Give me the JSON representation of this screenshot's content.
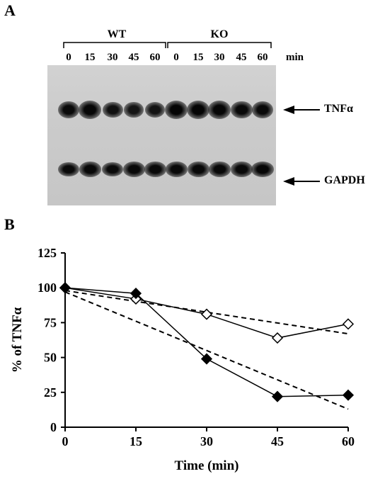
{
  "panel_a": {
    "letter": "A",
    "groups": [
      {
        "label": "WT",
        "lanes": [
          "0",
          "15",
          "30",
          "45",
          "60"
        ]
      },
      {
        "label": "KO",
        "lanes": [
          "0",
          "15",
          "30",
          "45",
          "60"
        ]
      }
    ],
    "unit": "min",
    "bands": [
      {
        "label": "TNFα",
        "intensity": {
          "WT": [
            0.85,
            0.95,
            0.7,
            0.55,
            0.6
          ],
          "KO": [
            1.0,
            1.0,
            0.95,
            0.9,
            0.85
          ]
        }
      },
      {
        "label": "GAPDH",
        "intensity": {
          "WT": [
            0.85,
            0.9,
            0.85,
            0.9,
            0.9
          ],
          "KO": [
            0.9,
            0.9,
            0.9,
            0.9,
            0.95
          ]
        }
      }
    ]
  },
  "panel_b": {
    "letter": "B",
    "chart_data": {
      "type": "line",
      "xlabel": "Time (min)",
      "ylabel": "% of TNFα",
      "x": [
        0,
        15,
        30,
        45,
        60
      ],
      "xlim": [
        0,
        60
      ],
      "ylim": [
        0,
        125
      ],
      "xticks": [
        "0",
        "15",
        "30",
        "45",
        "60"
      ],
      "yticks": [
        "0",
        "25",
        "50",
        "75",
        "100",
        "125"
      ],
      "series": [
        {
          "marker": "open-diamond",
          "values": [
            100,
            92,
            81,
            64,
            74
          ],
          "trend": [
            98,
            67
          ]
        },
        {
          "marker": "filled-diamond",
          "values": [
            100,
            96,
            49,
            22,
            23
          ],
          "trend": [
            97,
            13
          ]
        }
      ]
    }
  }
}
